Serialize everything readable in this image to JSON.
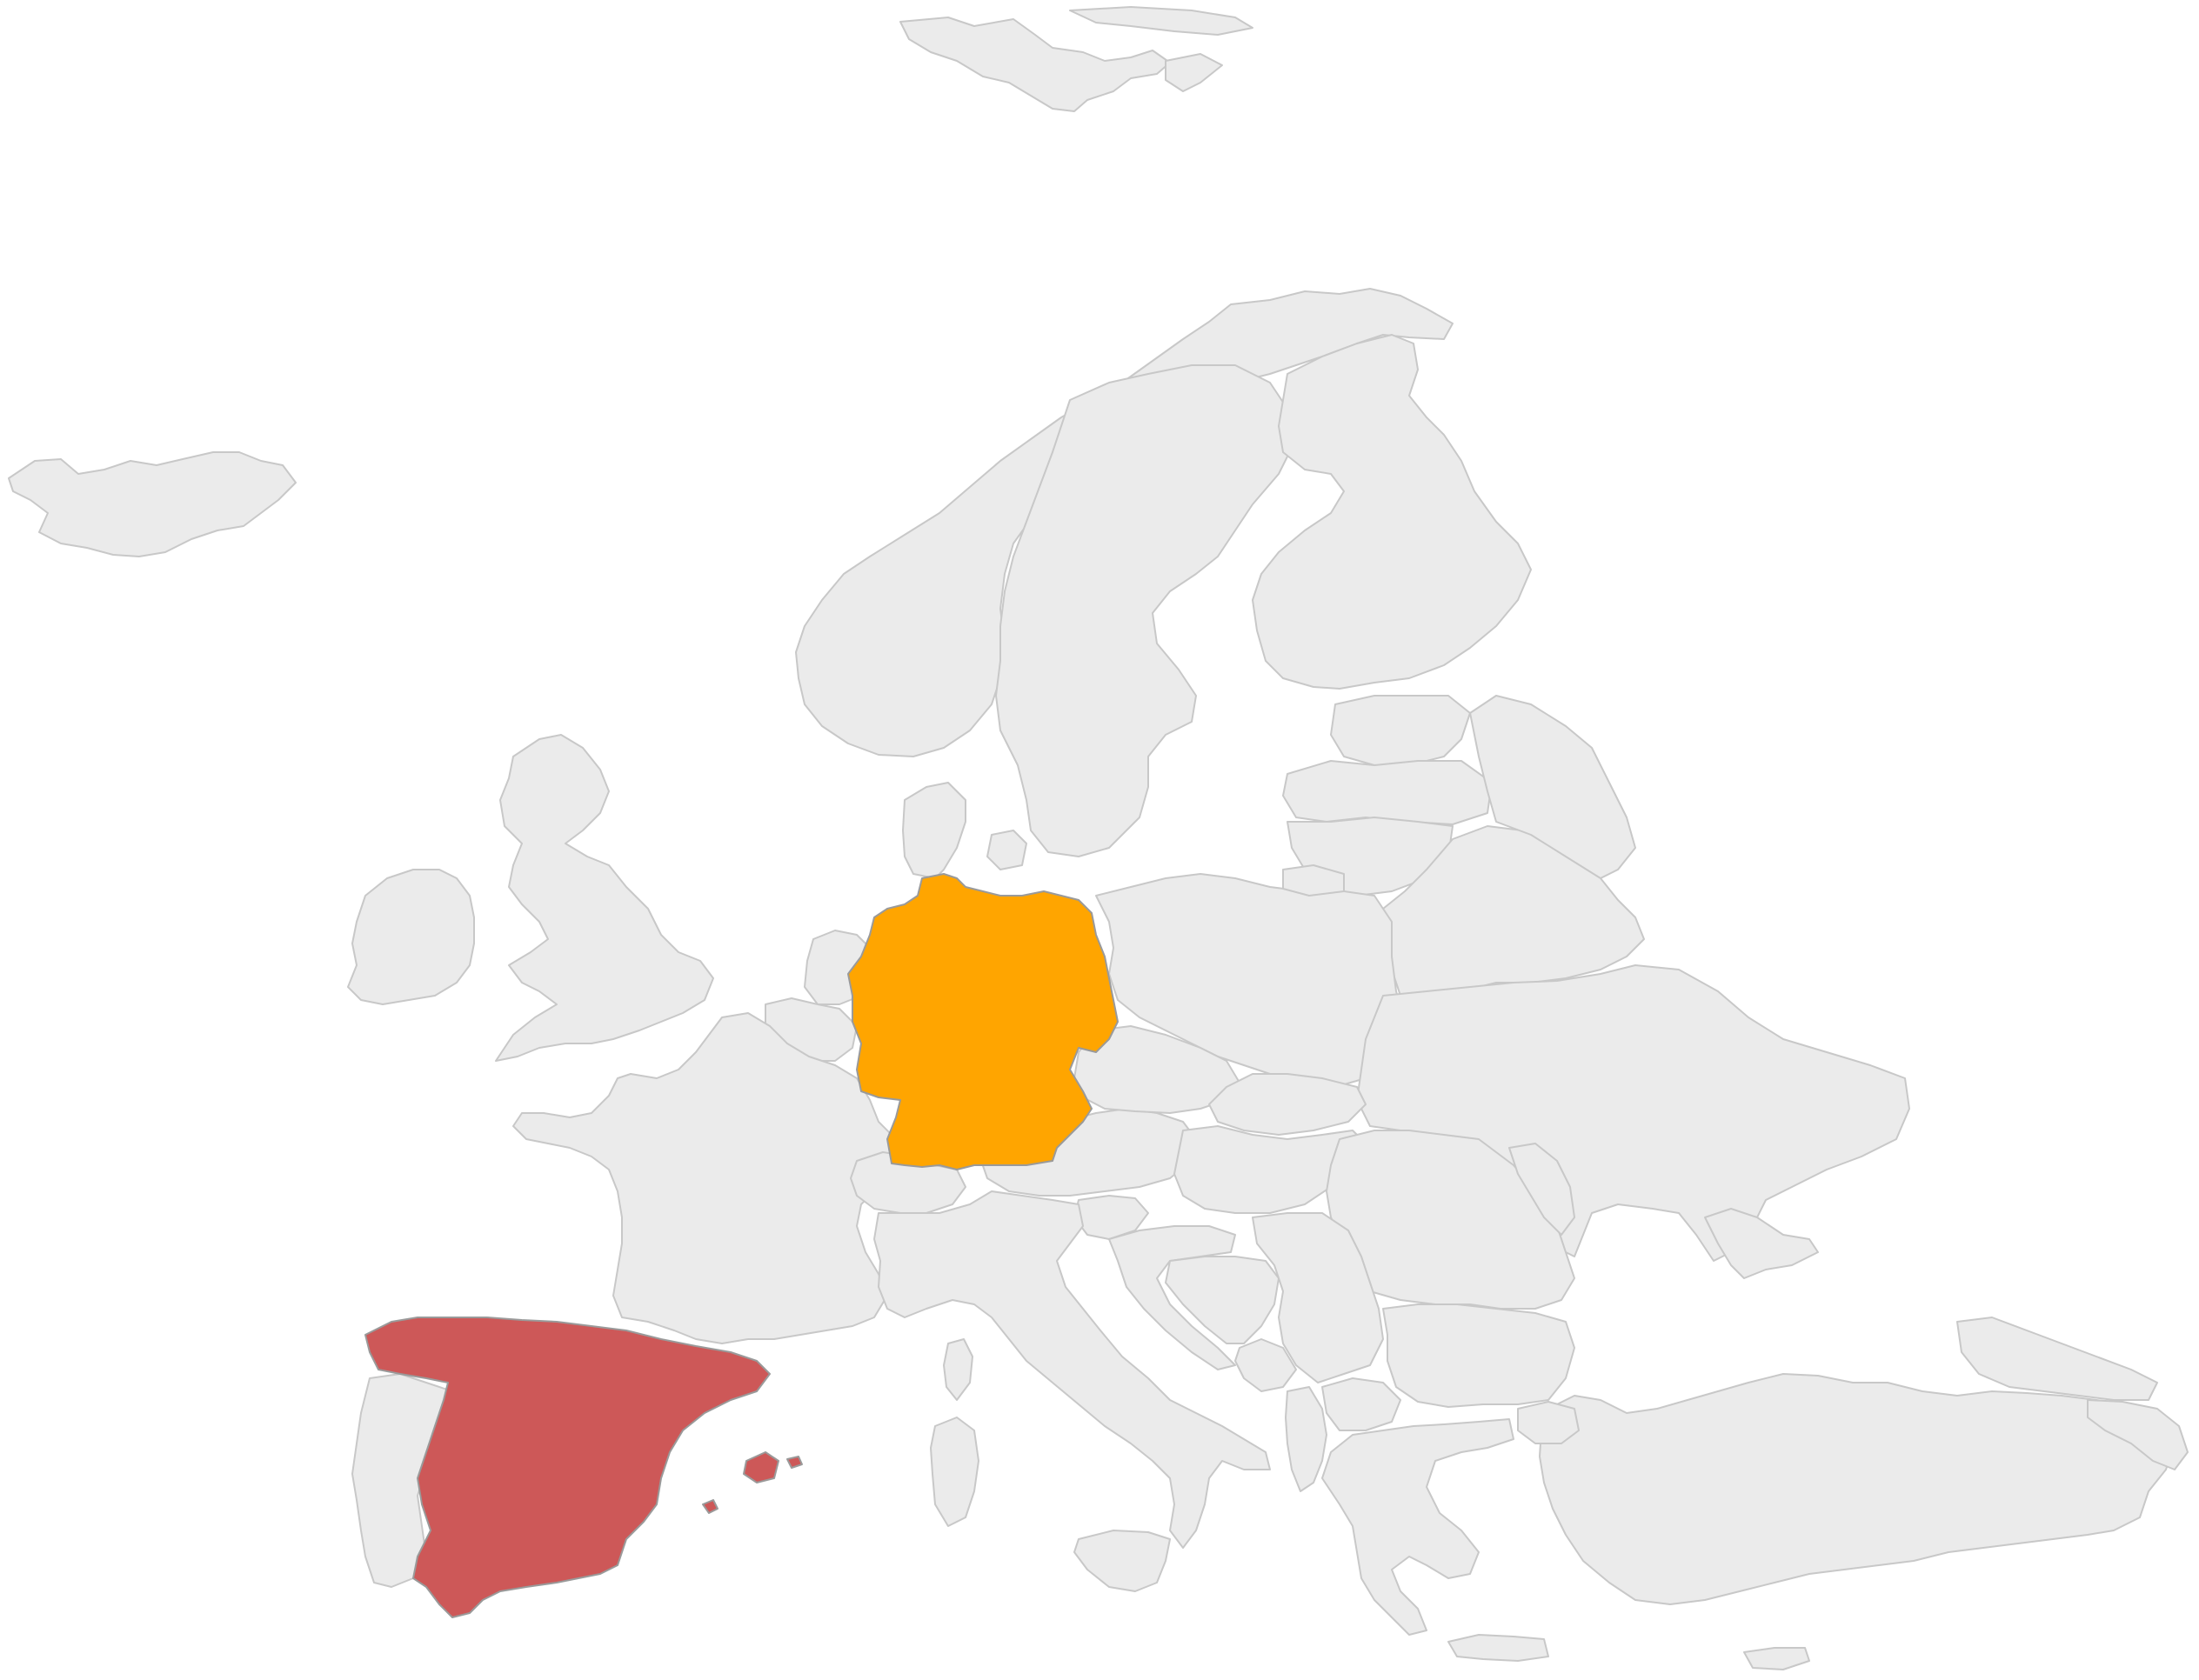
{
  "map": {
    "base_color": "#ebebeb",
    "border_color": "#c8c8c8",
    "highlighted": [
      {
        "country": "Germany",
        "color": "#ffa500"
      },
      {
        "country": "Spain",
        "color": "#cd5858"
      }
    ]
  }
}
